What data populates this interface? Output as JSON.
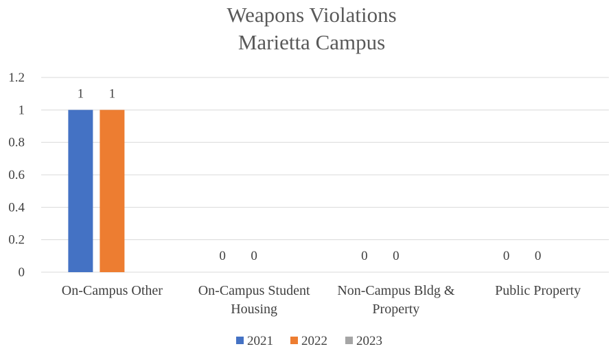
{
  "chart_data": {
    "type": "bar",
    "title_lines": [
      "Weapons Violations",
      "Marietta Campus"
    ],
    "categories": [
      [
        "On-Campus Other"
      ],
      [
        "On-Campus Student",
        "Housing"
      ],
      [
        "Non-Campus Bldg &",
        "Property"
      ],
      [
        "Public Property"
      ]
    ],
    "series": [
      {
        "name": "2021",
        "color": "#4472C4",
        "values": [
          1,
          0,
          0,
          0
        ],
        "labels": [
          "1",
          "0",
          "0",
          "0"
        ]
      },
      {
        "name": "2022",
        "color": "#ED7D31",
        "values": [
          1,
          0,
          0,
          0
        ],
        "labels": [
          "1",
          "0",
          "0",
          "0"
        ]
      },
      {
        "name": "2023",
        "color": "#A5A5A5",
        "values": [
          0,
          0,
          0,
          0
        ],
        "labels": [
          "",
          "",
          "",
          ""
        ]
      }
    ],
    "yticks": [
      "0",
      "0.2",
      "0.4",
      "0.6",
      "0.8",
      "1",
      "1.2"
    ],
    "ylim": [
      0,
      1.2
    ],
    "grid": true,
    "legend_position": "bottom"
  }
}
